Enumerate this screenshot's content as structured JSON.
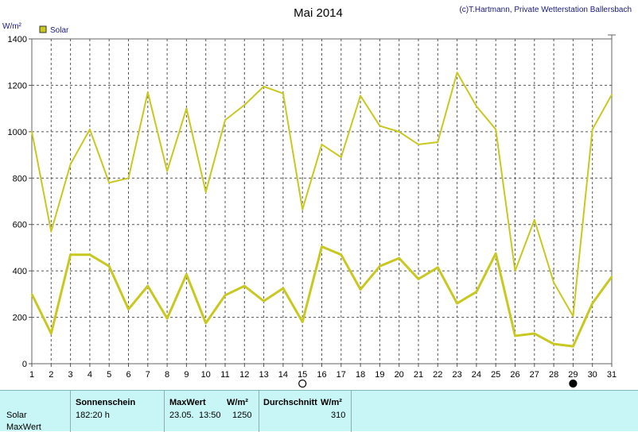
{
  "chart_data": {
    "type": "line",
    "title": "Mai 2014",
    "credit": "(c)T.Hartmann, Private Wetterstation Ballersbach",
    "ylabel": "W/m²",
    "ylim": [
      0,
      1400
    ],
    "yticks": [
      0,
      200,
      400,
      600,
      800,
      1000,
      1200,
      1400
    ],
    "xlim": [
      1,
      31
    ],
    "x": [
      1,
      2,
      3,
      4,
      5,
      6,
      7,
      8,
      9,
      10,
      11,
      12,
      13,
      14,
      15,
      16,
      17,
      18,
      19,
      20,
      21,
      22,
      23,
      24,
      25,
      26,
      27,
      28,
      29,
      30,
      31
    ],
    "grid": true,
    "legend_position": "top-left",
    "legend": "Solar",
    "line_color": "#c8c820",
    "series": [
      {
        "role": "max",
        "values": [
          1000,
          570,
          860,
          1010,
          780,
          800,
          1170,
          830,
          1100,
          740,
          1050,
          1115,
          1195,
          1165,
          665,
          945,
          890,
          1155,
          1025,
          1000,
          945,
          955,
          1255,
          1110,
          1010,
          400,
          620,
          350,
          205,
          1010,
          1160
        ]
      },
      {
        "role": "avg",
        "values": [
          300,
          130,
          470,
          470,
          420,
          235,
          335,
          195,
          385,
          175,
          295,
          335,
          270,
          325,
          180,
          505,
          470,
          320,
          420,
          455,
          365,
          415,
          260,
          310,
          475,
          120,
          130,
          85,
          75,
          260,
          375
        ]
      }
    ],
    "moon_markers": [
      {
        "day": 15,
        "phase": "full-moon"
      },
      {
        "day": 29,
        "phase": "new-moon"
      }
    ]
  },
  "stats": {
    "row_label_solar": "Solar",
    "row_label_max": "MaxWert",
    "sunshine_header": "Sonnenschein",
    "sunshine_value": "182:20 h",
    "max_header": "MaxWert",
    "max_unit": "W/m²",
    "max_date": "23.05.",
    "max_time": "13:50",
    "max_value": "1250",
    "avg_header": "Durchschnitt",
    "avg_unit": "W/m²",
    "avg_value": "310"
  }
}
